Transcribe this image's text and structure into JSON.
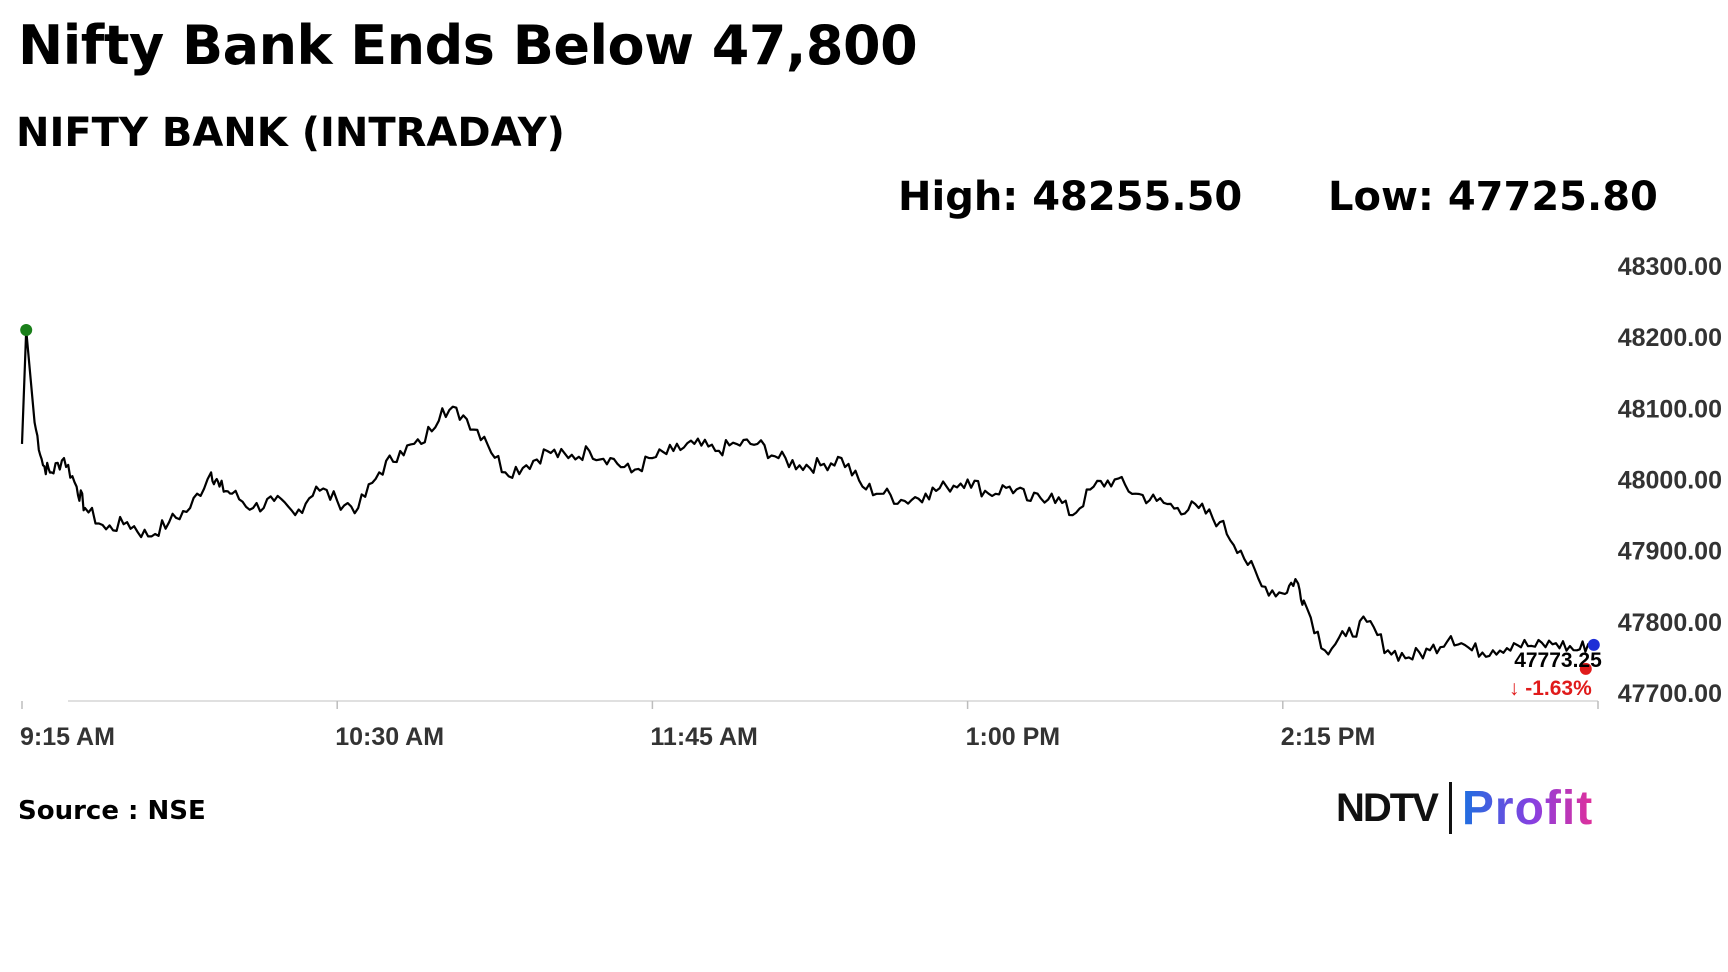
{
  "headline": "Nifty Bank Ends Below 47,800",
  "subtitle": "NIFTY BANK (INTRADAY)",
  "stats": {
    "high": "High: 48255.50",
    "low": "Low: 47725.80"
  },
  "source": "Source : NSE",
  "logo": {
    "part1": "NDTV",
    "part2": "Profit"
  },
  "colors": {
    "line": "#000000",
    "open_marker": "#1a7f1a",
    "last_marker": "#1f2fd6",
    "change_marker": "#e01b1b",
    "change_text": "#e01b1b"
  },
  "chart_data": {
    "type": "line",
    "title": "NIFTY BANK (INTRADAY)",
    "xlabel": "",
    "ylabel": "",
    "ylim": [
      47700,
      48300
    ],
    "xlim_minutes": [
      0,
      375
    ],
    "y_ticks": [
      "48300.00",
      "48200.00",
      "48100.00",
      "48000.00",
      "47900.00",
      "47800.00",
      "47700.00"
    ],
    "x_ticks": [
      {
        "label": "9:15 AM",
        "minute": 0
      },
      {
        "label": "10:30 AM",
        "minute": 75
      },
      {
        "label": "11:45 AM",
        "minute": 150
      },
      {
        "label": "1:00 PM",
        "minute": 225
      },
      {
        "label": "2:15 PM",
        "minute": 300
      }
    ],
    "grid": false,
    "series": [
      {
        "x_time": [
          "9:15",
          "9:16",
          "9:18",
          "9:20",
          "9:22",
          "9:25",
          "9:28",
          "9:30",
          "9:35",
          "9:40",
          "9:45",
          "9:50",
          "9:55",
          "10:00",
          "10:02",
          "10:05",
          "10:10",
          "10:15",
          "10:20",
          "10:25",
          "10:30",
          "10:35",
          "10:40",
          "10:45",
          "10:50",
          "10:55",
          "11:00",
          "11:05",
          "11:10",
          "11:15",
          "11:20",
          "11:25",
          "11:30",
          "11:35",
          "11:40",
          "11:45",
          "11:50",
          "11:55",
          "12:00",
          "12:05",
          "12:10",
          "12:15",
          "12:20",
          "12:25",
          "12:30",
          "12:35",
          "12:40",
          "12:45",
          "12:50",
          "12:55",
          "13:00",
          "13:05",
          "13:10",
          "13:15",
          "13:20",
          "13:25",
          "13:30",
          "13:35",
          "13:40",
          "13:45",
          "13:50",
          "13:55",
          "14:00",
          "14:05",
          "14:10",
          "14:15",
          "14:18",
          "14:20",
          "14:25",
          "14:30",
          "14:35",
          "14:40",
          "14:45",
          "14:50",
          "14:55",
          "15:00",
          "15:05",
          "15:10",
          "15:15",
          "15:20",
          "15:25",
          "15:29"
        ],
        "values": [
          48050,
          48210,
          48080,
          48020,
          48010,
          48030,
          47990,
          47960,
          47930,
          47940,
          47920,
          47940,
          47960,
          48010,
          47990,
          47980,
          47960,
          47970,
          47950,
          47990,
          47970,
          47960,
          48010,
          48040,
          48050,
          48100,
          48090,
          48060,
          48010,
          48020,
          48040,
          48030,
          48040,
          48030,
          48010,
          48030,
          48040,
          48050,
          48040,
          48050,
          48050,
          48030,
          48020,
          48020,
          48030,
          47990,
          47980,
          47970,
          47980,
          47990,
          48000,
          47980,
          47990,
          47970,
          47980,
          47950,
          47990,
          48000,
          47980,
          47970,
          47960,
          47960,
          47940,
          47900,
          47850,
          47840,
          47860,
          47830,
          47760,
          47780,
          47800,
          47760,
          47750,
          47760,
          47780,
          47760,
          47760,
          47770,
          47765,
          47770,
          47760,
          47773.25
        ]
      }
    ],
    "open_value": 48210,
    "last_value": "47773.25",
    "change": "-1.63%",
    "change_arrow": "↓"
  }
}
